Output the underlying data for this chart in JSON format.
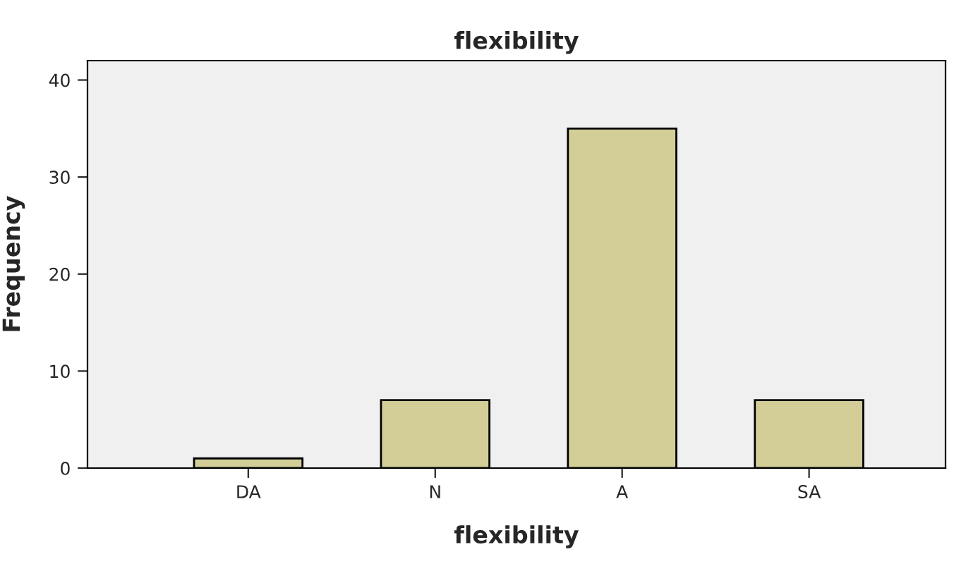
{
  "chart_data": {
    "type": "bar",
    "title": "flexibility",
    "xlabel": "flexibility",
    "ylabel": "Frequency",
    "categories": [
      "DA",
      "N",
      "A",
      "SA"
    ],
    "values": [
      1,
      7,
      35,
      7
    ],
    "color": "#d3ce97",
    "ylim": [
      0,
      42
    ],
    "yticks": [
      0,
      10,
      20,
      30,
      40
    ],
    "grid": false,
    "legend": false
  }
}
